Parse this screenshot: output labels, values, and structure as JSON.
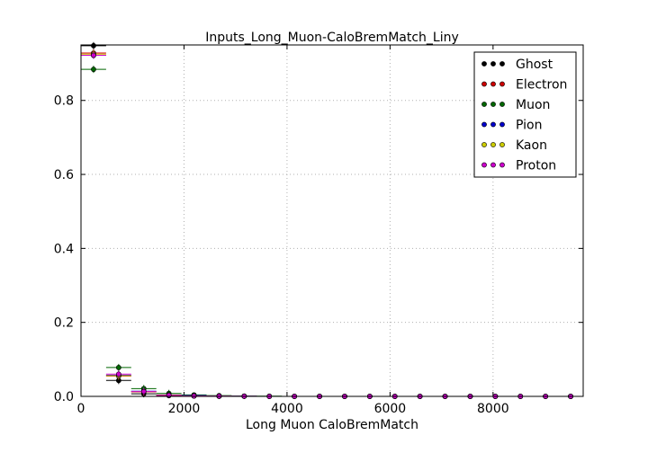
{
  "chart_data": {
    "type": "scatter",
    "title": "Inputs_Long_Muon-CaloBremMatch_Liny",
    "xlabel": "Long Muon CaloBremMatch",
    "ylabel": "",
    "xlim": [
      0,
      9750
    ],
    "ylim": [
      0,
      0.95
    ],
    "xticks": [
      0,
      2000,
      4000,
      6000,
      8000
    ],
    "yticks": [
      0.0,
      0.2,
      0.4,
      0.6,
      0.8
    ],
    "xtick_labels": [
      "0",
      "2000",
      "4000",
      "6000",
      "8000"
    ],
    "ytick_labels": [
      "0.0",
      "0.2",
      "0.4",
      "0.6",
      "0.8"
    ],
    "grid": true,
    "legend_position": "top-right",
    "bin_width": 487.5,
    "x": [
      243.75,
      731.25,
      1218.75,
      1706.25,
      2193.75,
      2681.25,
      3168.75,
      3656.25,
      4143.75,
      4631.25,
      5118.75,
      5606.25,
      6093.75,
      6581.25,
      7068.75,
      7556.25,
      8043.75,
      8531.25,
      9018.75,
      9506.25
    ],
    "series": [
      {
        "name": "Ghost",
        "color": "#000000",
        "values": [
          0.948,
          0.043,
          0.007,
          0.002,
          0.001,
          0.0005,
          0.0003,
          0,
          0,
          0,
          0,
          0,
          0,
          0,
          0,
          0,
          0,
          0,
          0,
          0
        ]
      },
      {
        "name": "Electron",
        "color": "#cc0000",
        "values": [
          0.928,
          0.055,
          0.012,
          0.003,
          0.001,
          0.0005,
          0.0003,
          0,
          0,
          0,
          0,
          0,
          0,
          0,
          0,
          0,
          0,
          0,
          0,
          0
        ]
      },
      {
        "name": "Muon",
        "color": "#006600",
        "values": [
          0.884,
          0.078,
          0.021,
          0.008,
          0.004,
          0.002,
          0.001,
          0.0005,
          0,
          0,
          0,
          0,
          0,
          0,
          0,
          0,
          0,
          0,
          0,
          0
        ]
      },
      {
        "name": "Pion",
        "color": "#0000cc",
        "values": [
          0.922,
          0.057,
          0.014,
          0.004,
          0.002,
          0.001,
          0.0005,
          0,
          0,
          0,
          0,
          0,
          0,
          0,
          0,
          0,
          0,
          0,
          0,
          0
        ]
      },
      {
        "name": "Kaon",
        "color": "#cccc00",
        "values": [
          0.925,
          0.056,
          0.013,
          0.004,
          0.001,
          0.0005,
          0.0003,
          0,
          0,
          0,
          0,
          0,
          0,
          0,
          0,
          0,
          0,
          0,
          0,
          0
        ]
      },
      {
        "name": "Proton",
        "color": "#cc00cc",
        "values": [
          0.922,
          0.06,
          0.013,
          0.003,
          0.001,
          0.0005,
          0.0003,
          0,
          0,
          0,
          0,
          0,
          0,
          0,
          0,
          0,
          0,
          0,
          0,
          0
        ]
      }
    ]
  }
}
